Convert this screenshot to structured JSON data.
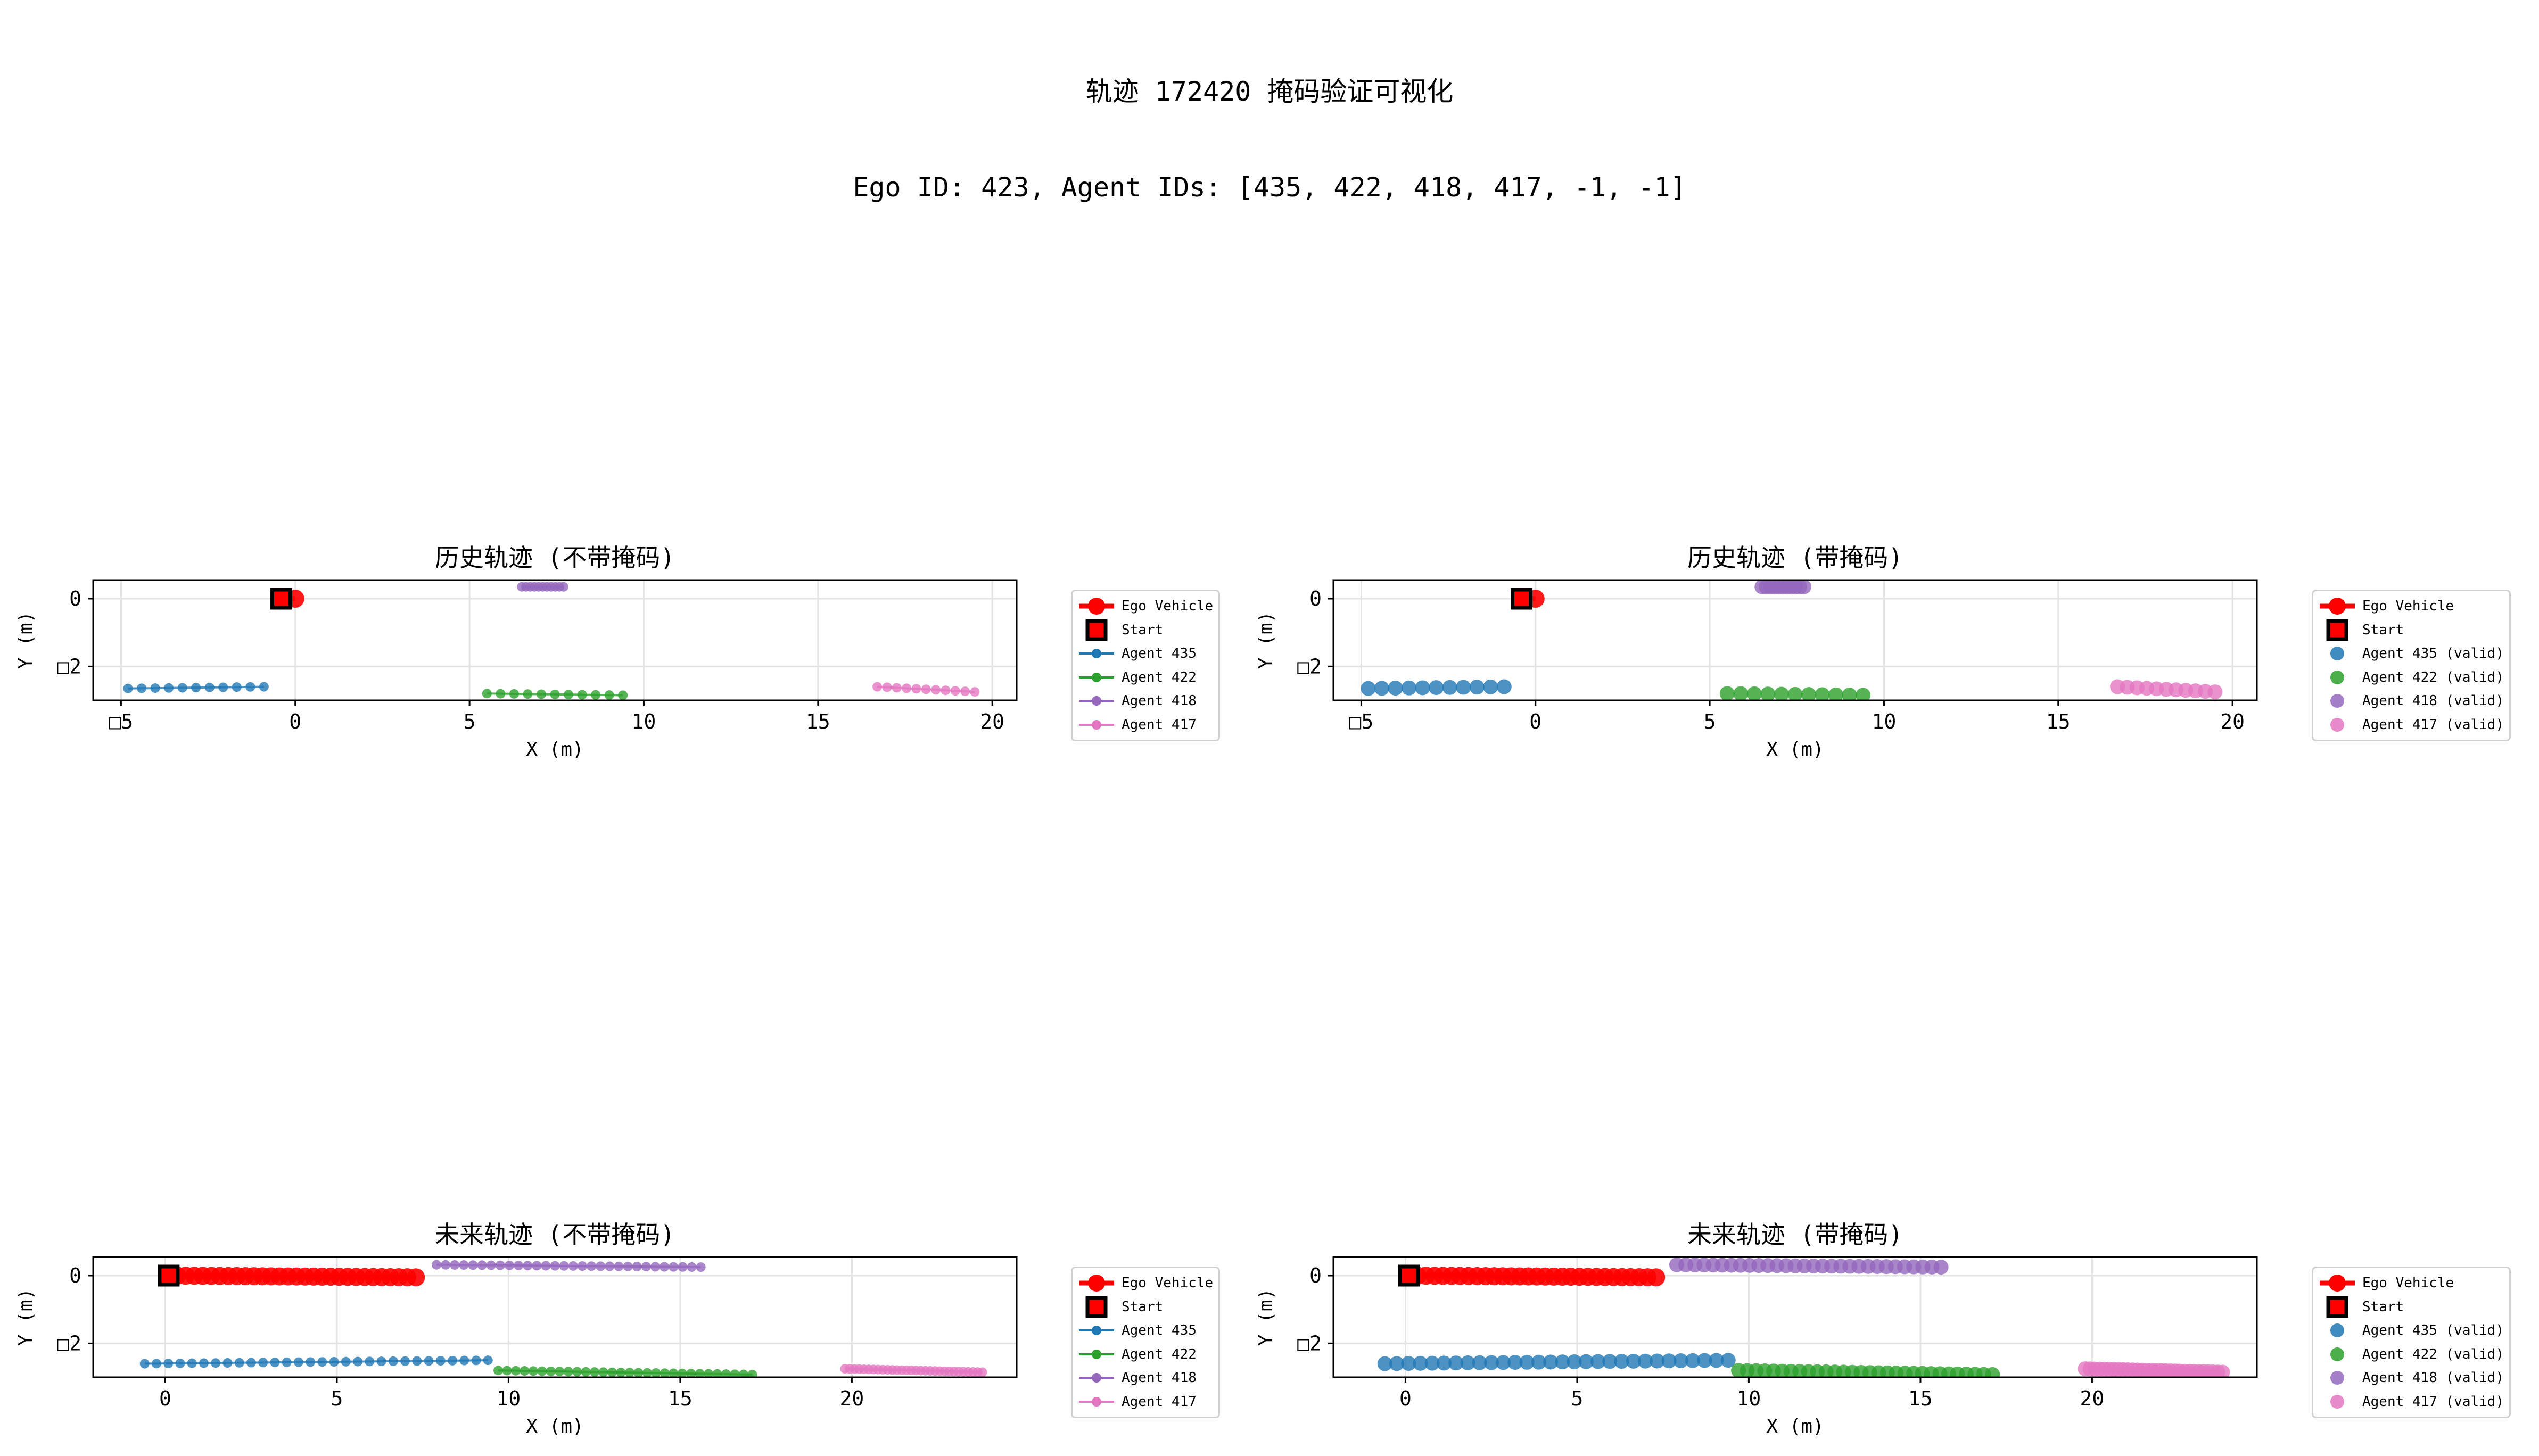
{
  "figure": {
    "title_line1": "轨迹 172420 掩码验证可视化",
    "title_line2": "Ego ID: 423, Agent IDs: [435, 422, 418, 417, -1, -1]"
  },
  "colors": {
    "ego": "#ff0000",
    "start_fill": "#ff0000",
    "start_edge": "#000000",
    "agent_435": "#1f77b4",
    "agent_422": "#2ca02c",
    "agent_418": "#9467bd",
    "agent_417": "#e377c2"
  },
  "chart_data": [
    {
      "type": "scatter",
      "title": "历史轨迹 (不带掩码)",
      "xlabel": "X (m)",
      "ylabel": "Y (m)",
      "xlim": [
        -5.8,
        20.7
      ],
      "ylim": [
        -3.0,
        0.55
      ],
      "x_ticks": [
        -5,
        0,
        5,
        10,
        15,
        20
      ],
      "x_tick_labels": [
        "□5",
        "0",
        "5",
        "10",
        "15",
        "20"
      ],
      "y_ticks": [
        0,
        -2
      ],
      "y_tick_labels": [
        "0",
        "□2"
      ],
      "grid": true,
      "legend_location": "outside-right",
      "legend": [
        "Ego Vehicle",
        "Start",
        "Agent 435",
        "Agent 422",
        "Agent 418",
        "Agent 417"
      ],
      "marker_size": "small",
      "series": [
        {
          "name": "Ego Vehicle",
          "x_start": -0.4,
          "x_end": 0.0,
          "y_start": 0.0,
          "y_end": 0.0,
          "points": 2
        },
        {
          "name": "Start",
          "x": -0.4,
          "y": 0.0
        },
        {
          "name": "Agent 435",
          "x_start": -4.8,
          "x_end": -0.9,
          "y_start": -2.65,
          "y_end": -2.6,
          "points": 11
        },
        {
          "name": "Agent 422",
          "x_start": 5.5,
          "x_end": 9.4,
          "y_start": -2.8,
          "y_end": -2.85,
          "points": 11
        },
        {
          "name": "Agent 418",
          "x_start": 6.5,
          "x_end": 7.7,
          "y_start": 0.35,
          "y_end": 0.35,
          "points": 11
        },
        {
          "name": "Agent 417",
          "x_start": 16.7,
          "x_end": 19.5,
          "y_start": -2.6,
          "y_end": -2.75,
          "points": 11
        }
      ]
    },
    {
      "type": "scatter",
      "title": "历史轨迹 (带掩码)",
      "xlabel": "X (m)",
      "ylabel": "Y (m)",
      "xlim": [
        -5.8,
        20.7
      ],
      "ylim": [
        -3.0,
        0.55
      ],
      "x_ticks": [
        -5,
        0,
        5,
        10,
        15,
        20
      ],
      "x_tick_labels": [
        "□5",
        "0",
        "5",
        "10",
        "15",
        "20"
      ],
      "y_ticks": [
        0,
        -2
      ],
      "y_tick_labels": [
        "0",
        "□2"
      ],
      "grid": true,
      "legend_location": "outside-right",
      "legend": [
        "Ego Vehicle",
        "Start",
        "Agent 435 (valid)",
        "Agent 422 (valid)",
        "Agent 418 (valid)",
        "Agent 417 (valid)"
      ],
      "marker_size": "large",
      "series": [
        {
          "name": "Ego Vehicle",
          "x_start": -0.4,
          "x_end": 0.0,
          "y_start": 0.0,
          "y_end": 0.0,
          "points": 2
        },
        {
          "name": "Start",
          "x": -0.4,
          "y": 0.0
        },
        {
          "name": "Agent 435 (valid)",
          "x_start": -4.8,
          "x_end": -0.9,
          "y_start": -2.65,
          "y_end": -2.6,
          "points": 11
        },
        {
          "name": "Agent 422 (valid)",
          "x_start": 5.5,
          "x_end": 9.4,
          "y_start": -2.8,
          "y_end": -2.85,
          "points": 11
        },
        {
          "name": "Agent 418 (valid)",
          "x_start": 6.5,
          "x_end": 7.7,
          "y_start": 0.35,
          "y_end": 0.35,
          "points": 11
        },
        {
          "name": "Agent 417 (valid)",
          "x_start": 16.7,
          "x_end": 19.5,
          "y_start": -2.6,
          "y_end": -2.75,
          "points": 11
        }
      ]
    },
    {
      "type": "scatter",
      "title": "未来轨迹 (不带掩码)",
      "xlabel": "X (m)",
      "ylabel": "Y (m)",
      "xlim": [
        -2.1,
        24.8
      ],
      "ylim": [
        -3.0,
        0.55
      ],
      "x_ticks": [
        0,
        5,
        10,
        15,
        20
      ],
      "x_tick_labels": [
        "0",
        "5",
        "10",
        "15",
        "20"
      ],
      "y_ticks": [
        0,
        -2
      ],
      "y_tick_labels": [
        "0",
        "□2"
      ],
      "grid": true,
      "legend_location": "outside-right",
      "legend": [
        "Ego Vehicle",
        "Start",
        "Agent 435",
        "Agent 422",
        "Agent 418",
        "Agent 417"
      ],
      "marker_size": "small",
      "series": [
        {
          "name": "Ego Vehicle",
          "x_start": 0.1,
          "x_end": 7.3,
          "y_start": 0.0,
          "y_end": -0.05,
          "points": 30
        },
        {
          "name": "Start",
          "x": 0.1,
          "y": 0.0
        },
        {
          "name": "Agent 435",
          "x_start": -0.6,
          "x_end": 9.4,
          "y_start": -2.6,
          "y_end": -2.5,
          "points": 30
        },
        {
          "name": "Agent 422",
          "x_start": 9.7,
          "x_end": 17.1,
          "y_start": -2.8,
          "y_end": -2.92,
          "points": 30
        },
        {
          "name": "Agent 418",
          "x_start": 7.9,
          "x_end": 15.6,
          "y_start": 0.32,
          "y_end": 0.25,
          "points": 30
        },
        {
          "name": "Agent 417",
          "x_start": 19.8,
          "x_end": 23.8,
          "y_start": -2.75,
          "y_end": -2.85,
          "points": 30
        }
      ]
    },
    {
      "type": "scatter",
      "title": "未来轨迹 (带掩码)",
      "xlabel": "X (m)",
      "ylabel": "Y (m)",
      "xlim": [
        -2.1,
        24.8
      ],
      "ylim": [
        -3.0,
        0.55
      ],
      "x_ticks": [
        0,
        5,
        10,
        15,
        20
      ],
      "x_tick_labels": [
        "0",
        "5",
        "10",
        "15",
        "20"
      ],
      "y_ticks": [
        0,
        -2
      ],
      "y_tick_labels": [
        "0",
        "□2"
      ],
      "grid": true,
      "legend_location": "outside-right",
      "legend": [
        "Ego Vehicle",
        "Start",
        "Agent 435 (valid)",
        "Agent 422 (valid)",
        "Agent 418 (valid)",
        "Agent 417 (valid)"
      ],
      "marker_size": "large",
      "series": [
        {
          "name": "Ego Vehicle",
          "x_start": 0.1,
          "x_end": 7.3,
          "y_start": 0.0,
          "y_end": -0.05,
          "points": 30
        },
        {
          "name": "Start",
          "x": 0.1,
          "y": 0.0
        },
        {
          "name": "Agent 435 (valid)",
          "x_start": -0.6,
          "x_end": 9.4,
          "y_start": -2.6,
          "y_end": -2.5,
          "points": 30
        },
        {
          "name": "Agent 422 (valid)",
          "x_start": 9.7,
          "x_end": 17.1,
          "y_start": -2.8,
          "y_end": -2.92,
          "points": 30
        },
        {
          "name": "Agent 418 (valid)",
          "x_start": 7.9,
          "x_end": 15.6,
          "y_start": 0.32,
          "y_end": 0.25,
          "points": 30
        },
        {
          "name": "Agent 417 (valid)",
          "x_start": 19.8,
          "x_end": 23.8,
          "y_start": -2.75,
          "y_end": -2.85,
          "points": 30
        }
      ]
    }
  ]
}
